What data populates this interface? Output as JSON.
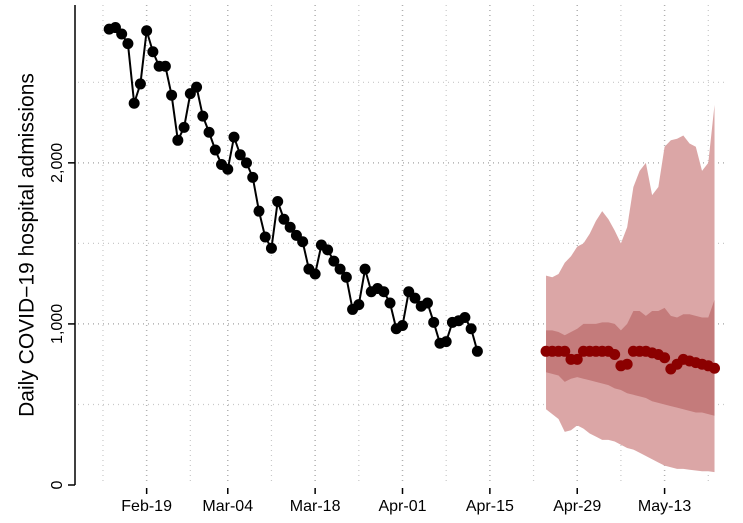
{
  "chart_data": {
    "type": "forecast",
    "ylabel": "Daily COVID−19 hospital admissions",
    "xlim": [
      "Feb-08",
      "May-23"
    ],
    "xticks": [
      "Feb-19",
      "Mar-04",
      "Mar-18",
      "Apr-01",
      "Apr-15",
      "Apr-29",
      "May-13"
    ],
    "xminor": [
      "Feb-12",
      "Feb-26",
      "Mar-11",
      "Mar-25",
      "Apr-08",
      "Apr-22",
      "May-06",
      "May-20"
    ],
    "ylim": [
      0,
      2980
    ],
    "yticks": [
      0,
      {
        "value": 1000,
        "label": "1,000"
      },
      {
        "value": 2000,
        "label": "2,000"
      }
    ],
    "yminor": [
      500,
      1500,
      2500
    ],
    "grid": true,
    "observed": {
      "color": "#000000",
      "x": [
        "Feb-13",
        "Feb-14",
        "Feb-15",
        "Feb-16",
        "Feb-17",
        "Feb-18",
        "Feb-19",
        "Feb-20",
        "Feb-21",
        "Feb-22",
        "Feb-23",
        "Feb-24",
        "Feb-25",
        "Feb-26",
        "Feb-27",
        "Feb-28",
        "Mar-01",
        "Mar-02",
        "Mar-03",
        "Mar-04",
        "Mar-05",
        "Mar-06",
        "Mar-07",
        "Mar-08",
        "Mar-09",
        "Mar-10",
        "Mar-11",
        "Mar-12",
        "Mar-13",
        "Mar-14",
        "Mar-15",
        "Mar-16",
        "Mar-17",
        "Mar-18",
        "Mar-19",
        "Mar-20",
        "Mar-21",
        "Mar-22",
        "Mar-23",
        "Mar-24",
        "Mar-25",
        "Mar-26",
        "Mar-27",
        "Mar-28",
        "Mar-29",
        "Mar-30",
        "Mar-31",
        "Apr-01",
        "Apr-02",
        "Apr-03",
        "Apr-04",
        "Apr-05",
        "Apr-06",
        "Apr-07",
        "Apr-08",
        "Apr-09",
        "Apr-10",
        "Apr-11",
        "Apr-12",
        "Apr-13"
      ],
      "values": [
        2830,
        2840,
        2800,
        2740,
        2370,
        2490,
        2820,
        2690,
        2600,
        2600,
        2420,
        2140,
        2220,
        2430,
        2470,
        2290,
        2190,
        2080,
        1990,
        1960,
        2160,
        2050,
        2000,
        1910,
        1700,
        1540,
        1470,
        1760,
        1650,
        1600,
        1550,
        1510,
        1340,
        1310,
        1490,
        1460,
        1390,
        1340,
        1290,
        1090,
        1120,
        1340,
        1200,
        1220,
        1200,
        1130,
        970,
        990,
        1200,
        1160,
        1110,
        1130,
        1010,
        880,
        890,
        1010,
        1020,
        1040,
        970,
        830
      ]
    },
    "forecast": {
      "color": "#8b0000",
      "band90_color": "#dba6a6",
      "band50_color": "#c47b7b",
      "x": [
        "Apr-24",
        "Apr-25",
        "Apr-26",
        "Apr-27",
        "Apr-28",
        "Apr-29",
        "Apr-30",
        "May-01",
        "May-02",
        "May-03",
        "May-04",
        "May-05",
        "May-06",
        "May-07",
        "May-08",
        "May-09",
        "May-10",
        "May-11",
        "May-12",
        "May-13",
        "May-14",
        "May-15",
        "May-16",
        "May-17",
        "May-18",
        "May-19",
        "May-20",
        "May-21"
      ],
      "values": [
        830,
        830,
        830,
        830,
        780,
        780,
        830,
        830,
        830,
        830,
        830,
        810,
        740,
        750,
        830,
        830,
        830,
        820,
        810,
        790,
        720,
        750,
        780,
        770,
        760,
        750,
        740,
        725
      ],
      "upper90": [
        1300,
        1290,
        1310,
        1380,
        1420,
        1480,
        1500,
        1560,
        1640,
        1700,
        1650,
        1580,
        1500,
        1600,
        1850,
        1950,
        2000,
        1800,
        1850,
        2100,
        2140,
        2150,
        2170,
        2120,
        2100,
        1950,
        2000,
        2360
      ],
      "lower90": [
        470,
        440,
        410,
        330,
        340,
        370,
        350,
        320,
        300,
        280,
        280,
        270,
        250,
        230,
        220,
        200,
        180,
        160,
        140,
        120,
        110,
        100,
        100,
        95,
        90,
        85,
        85,
        80
      ],
      "upper50": [
        960,
        960,
        950,
        930,
        950,
        970,
        1000,
        1000,
        1000,
        1010,
        1010,
        1000,
        960,
        1000,
        1080,
        1080,
        1050,
        1080,
        1080,
        1100,
        1050,
        1040,
        1060,
        1060,
        1050,
        1040,
        1040,
        1150
      ],
      "lower50": [
        700,
        690,
        680,
        640,
        660,
        670,
        660,
        650,
        640,
        630,
        620,
        600,
        590,
        570,
        560,
        550,
        540,
        520,
        510,
        500,
        490,
        480,
        470,
        460,
        450,
        450,
        440,
        430
      ]
    }
  }
}
